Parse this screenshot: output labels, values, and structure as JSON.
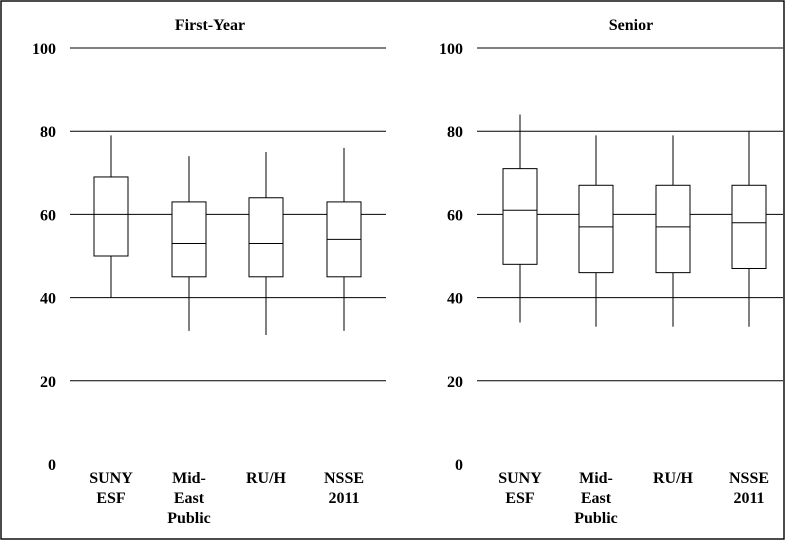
{
  "chart_data": [
    {
      "type": "boxplot",
      "title": "First-Year",
      "ylim": [
        0,
        100
      ],
      "yticks": [
        0,
        20,
        40,
        60,
        80,
        100
      ],
      "grid": true,
      "categories": [
        [
          "SUNY",
          "ESF"
        ],
        [
          "Mid-",
          "East",
          "Public"
        ],
        [
          "RU/H"
        ],
        [
          "NSSE",
          "2011"
        ]
      ],
      "boxes": [
        {
          "whisker_low": 40,
          "q1": 50,
          "median": 60,
          "q3": 69,
          "whisker_high": 79
        },
        {
          "whisker_low": 32,
          "q1": 45,
          "median": 53,
          "q3": 63,
          "whisker_high": 74
        },
        {
          "whisker_low": 31,
          "q1": 45,
          "median": 53,
          "q3": 64,
          "whisker_high": 75
        },
        {
          "whisker_low": 32,
          "q1": 45,
          "median": 54,
          "q3": 63,
          "whisker_high": 76
        }
      ]
    },
    {
      "type": "boxplot",
      "title": "Senior",
      "ylim": [
        0,
        100
      ],
      "yticks": [
        0,
        20,
        40,
        60,
        80,
        100
      ],
      "grid": true,
      "categories": [
        [
          "SUNY",
          "ESF"
        ],
        [
          "Mid-",
          "East",
          "Public"
        ],
        [
          "RU/H"
        ],
        [
          "NSSE",
          "2011"
        ]
      ],
      "boxes": [
        {
          "whisker_low": 34,
          "q1": 48,
          "median": 61,
          "q3": 71,
          "whisker_high": 84
        },
        {
          "whisker_low": 33,
          "q1": 46,
          "median": 57,
          "q3": 67,
          "whisker_high": 79
        },
        {
          "whisker_low": 33,
          "q1": 46,
          "median": 57,
          "q3": 67,
          "whisker_high": 79
        },
        {
          "whisker_low": 33,
          "q1": 47,
          "median": 58,
          "q3": 67,
          "whisker_high": 80
        }
      ]
    }
  ]
}
